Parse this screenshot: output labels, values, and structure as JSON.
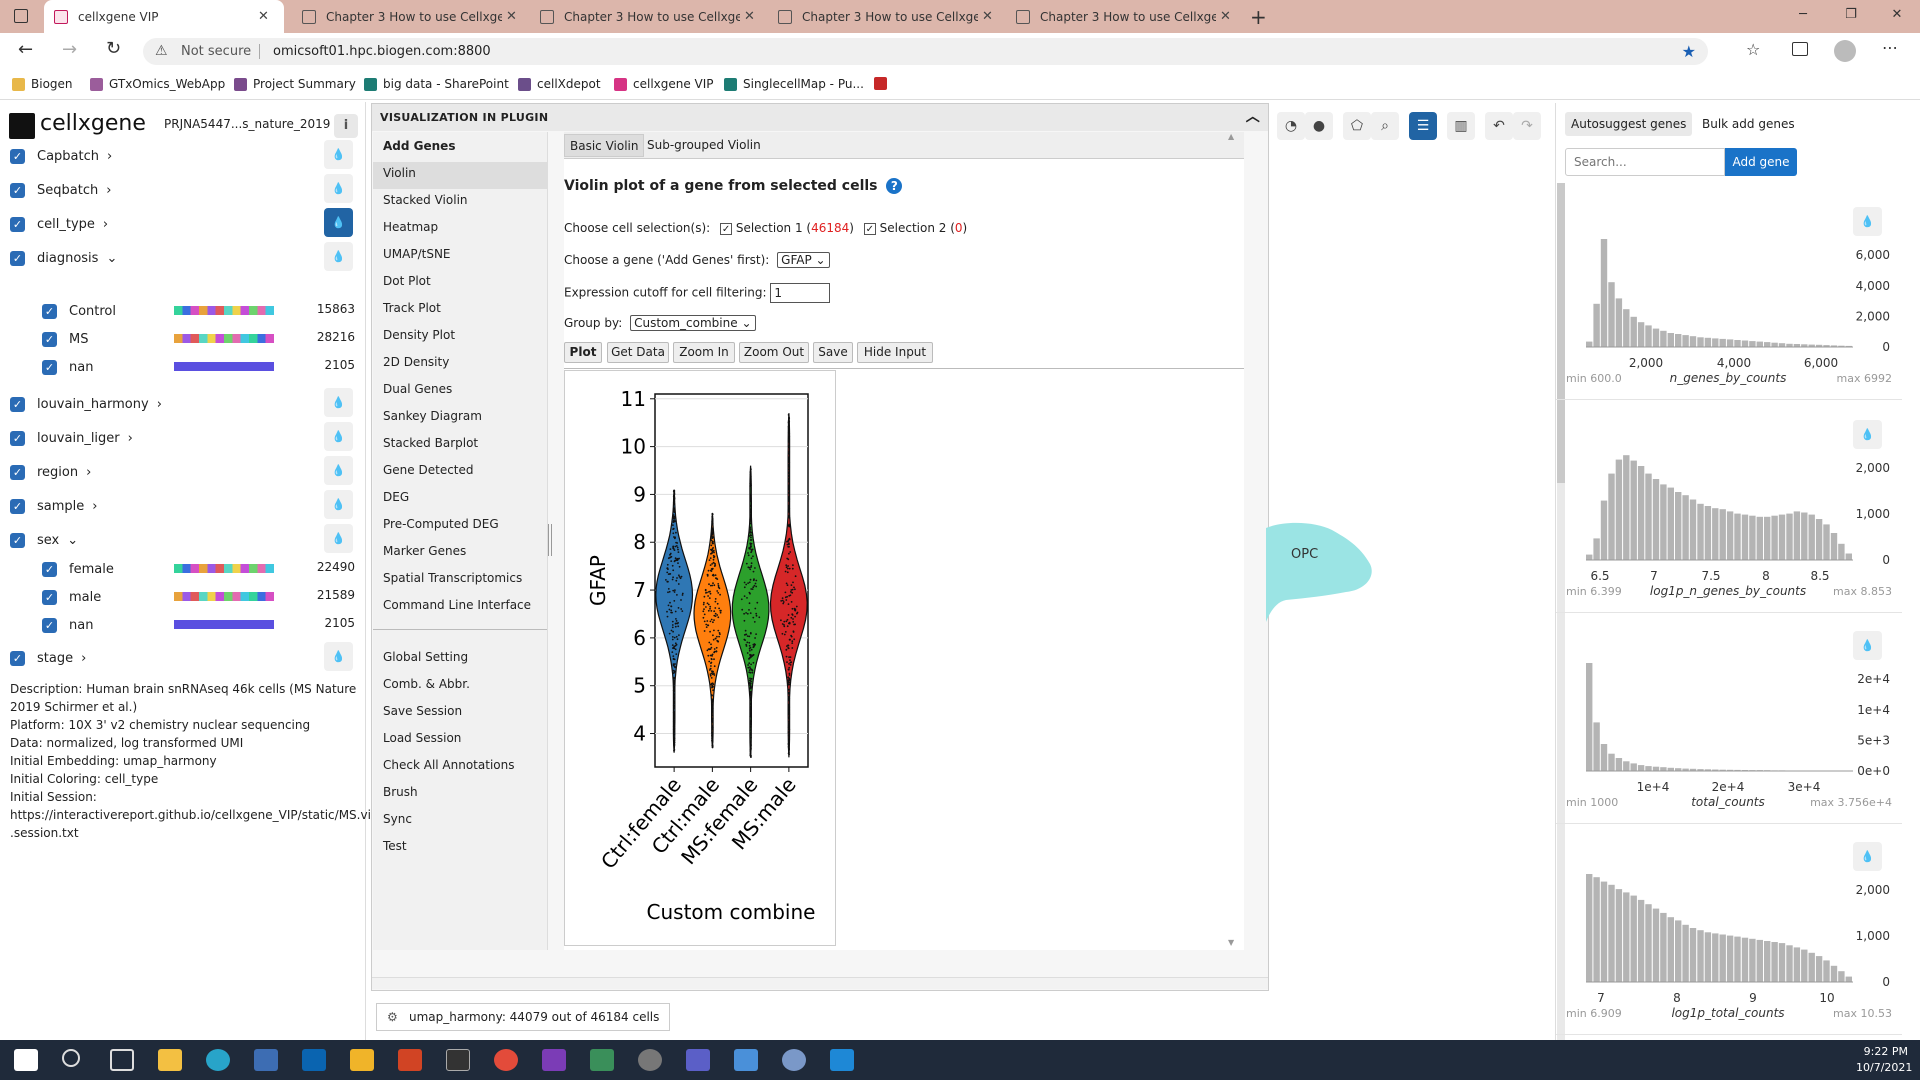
{
  "browser": {
    "tabs": [
      {
        "label": "cellxgene VIP",
        "active": true
      },
      {
        "label": "Chapter 3 How to use Cellxgene",
        "active": false
      },
      {
        "label": "Chapter 3 How to use Cellxgene",
        "active": false
      },
      {
        "label": "Chapter 3 How to use Cellxgene",
        "active": false
      },
      {
        "label": "Chapter 3 How to use Cellxgene",
        "active": false
      }
    ],
    "not_secure": "Not secure",
    "url": "omicsoft01.hpc.biogen.com:8800",
    "bookmarks": [
      "Biogen",
      "GTxOmics_WebApp",
      "Project Summary",
      "big data - SharePoint",
      "cellXdepot",
      "cellxgene VIP",
      "SinglecellMap - Pu..."
    ]
  },
  "left": {
    "logo": "cellxgene",
    "dataset": "PRJNA5447...s_nature_2019",
    "categories": [
      {
        "label": "Capbatch",
        "arrow": "›"
      },
      {
        "label": "Seqbatch",
        "arrow": "›"
      },
      {
        "label": "cell_type",
        "arrow": "›"
      },
      {
        "label": "diagnosis",
        "arrow": "⌄"
      },
      {
        "label": "louvain_harmony",
        "arrow": "›"
      },
      {
        "label": "louvain_liger",
        "arrow": "›"
      },
      {
        "label": "region",
        "arrow": "›"
      },
      {
        "label": "sample",
        "arrow": "›"
      },
      {
        "label": "sex",
        "arrow": "⌄"
      },
      {
        "label": "stage",
        "arrow": "›"
      }
    ],
    "diagnosis_values": [
      {
        "label": "Control",
        "count": "15863"
      },
      {
        "label": "MS",
        "count": "28216"
      },
      {
        "label": "nan",
        "count": "2105"
      }
    ],
    "sex_values": [
      {
        "label": "female",
        "count": "22490"
      },
      {
        "label": "male",
        "count": "21589"
      },
      {
        "label": "nan",
        "count": "2105"
      }
    ],
    "description": [
      "Description: Human brain snRNAseq 46k cells (MS Nature",
      "2019 Schirmer et al.)",
      "Platform: 10X 3' v2 chemistry nuclear sequencing",
      "Data: normalized, log transformed UMI",
      "Initial Embedding: umap_harmony",
      "Initial Coloring: cell_type",
      "Initial Session:",
      "https://interactivereport.github.io/cellxgene_VIP/static/MS.vip",
      ".session.txt"
    ]
  },
  "plugin": {
    "title": "Visualization in Plugin",
    "menu": [
      "Add Genes",
      "Violin",
      "Stacked Violin",
      "Heatmap",
      "UMAP/tSNE",
      "Dot Plot",
      "Track Plot",
      "Density Plot",
      "2D Density",
      "Dual Genes",
      "Sankey Diagram",
      "Stacked Barplot",
      "Gene Detected",
      "DEG",
      "Pre-Computed DEG",
      "Marker Genes",
      "Spatial Transcriptomics",
      "Command Line Interface"
    ],
    "menu2": [
      "Global Setting",
      "Comb. & Abbr.",
      "Save Session",
      "Load Session",
      "Check All Annotations",
      "Brush",
      "Sync",
      "Test"
    ],
    "subtabs": [
      "Basic Violin",
      "Sub-grouped Violin"
    ],
    "heading": "Violin plot of a gene from selected cells",
    "help": "?",
    "choose_sel": "Choose cell selection(s):",
    "sel1": "Selection 1 (",
    "sel1_count": "46184",
    "sel2": "Selection 2 (",
    "sel2_count": "0",
    "paren": ")",
    "choose_gene": "Choose a gene ('Add Genes' first):",
    "gene": "GFAP",
    "cutoff_label": "Expression cutoff for cell filtering:",
    "cutoff": "1",
    "groupby_label": "Group by:",
    "groupby": "Custom_combine",
    "buttons": [
      "Plot",
      "Get Data",
      "Zoom In",
      "Zoom Out",
      "Save",
      "Hide Input"
    ]
  },
  "chart_data": {
    "type": "violin",
    "categories": [
      "Ctrl:female",
      "Ctrl:male",
      "MS:female",
      "MS:male"
    ],
    "colors": [
      "#2f77b4",
      "#ff7f0e",
      "#2ca02c",
      "#d62728"
    ],
    "ranges": [
      [
        3.6,
        9.1
      ],
      [
        3.7,
        8.6
      ],
      [
        3.5,
        9.6
      ],
      [
        3.5,
        10.7
      ]
    ],
    "modes": [
      6.9,
      6.5,
      6.6,
      6.7
    ],
    "ylabel": "GFAP",
    "xlabel": "Custom combine",
    "yticks": [
      4,
      5,
      6,
      7,
      8,
      9,
      10,
      11
    ],
    "ylim": [
      3.3,
      11.1
    ]
  },
  "status": {
    "embedding": "umap_harmony: 44079 out of 46184 cells"
  },
  "embedding_label": "OPC",
  "genes": {
    "autosuggest": "Autosuggest genes",
    "bulk": "Bulk add genes",
    "placeholder": "Search...",
    "add": "Add gene"
  },
  "histograms": [
    {
      "name": "n_genes_by_counts",
      "min": "min 600.0",
      "max": "max 6992",
      "xticks": [
        "2,000",
        "4,000",
        "6,000"
      ],
      "yticks": [
        "6,000",
        "4,000",
        "2,000",
        "0"
      ],
      "values": [
        0.05,
        0.4,
        1.0,
        0.6,
        0.45,
        0.35,
        0.28,
        0.23,
        0.2,
        0.17,
        0.15,
        0.13,
        0.12,
        0.11,
        0.1,
        0.09,
        0.085,
        0.08,
        0.075,
        0.07,
        0.065,
        0.06,
        0.055,
        0.05,
        0.045,
        0.04,
        0.035,
        0.03,
        0.028,
        0.025,
        0.022,
        0.02,
        0.018,
        0.015,
        0.012,
        0.01
      ]
    },
    {
      "name": "log1p_n_genes_by_counts",
      "min": "min 6.399",
      "max": "max 8.853",
      "xticks": [
        "6.5",
        "7",
        "7.5",
        "8",
        "8.5"
      ],
      "yticks": [
        "2,000",
        "1,000",
        "0"
      ],
      "values": [
        0.05,
        0.2,
        0.55,
        0.8,
        0.93,
        0.97,
        0.92,
        0.87,
        0.8,
        0.75,
        0.7,
        0.67,
        0.63,
        0.6,
        0.56,
        0.52,
        0.5,
        0.48,
        0.47,
        0.45,
        0.43,
        0.42,
        0.41,
        0.4,
        0.4,
        0.41,
        0.42,
        0.43,
        0.45,
        0.44,
        0.42,
        0.38,
        0.33,
        0.25,
        0.15,
        0.06
      ]
    },
    {
      "name": "total_counts",
      "min": "min 1000",
      "max": "max 3.756e+4",
      "xticks": [
        "1e+4",
        "2e+4",
        "3e+4"
      ],
      "yticks": [
        "2e+4",
        "1e+4",
        "5e+3",
        "0e+0"
      ],
      "values": [
        1.0,
        0.45,
        0.25,
        0.16,
        0.12,
        0.09,
        0.07,
        0.055,
        0.045,
        0.04,
        0.035,
        0.03,
        0.026,
        0.022,
        0.02,
        0.018,
        0.016,
        0.014,
        0.012,
        0.011,
        0.01,
        0.009,
        0.008,
        0.008,
        0.007,
        0.006,
        0.006,
        0.005,
        0.005,
        0.004,
        0.004,
        0.003,
        0.003,
        0.003,
        0.002,
        0.002
      ]
    },
    {
      "name": "log1p_total_counts",
      "min": "min 6.909",
      "max": "max 10.53",
      "xticks": [
        "7",
        "8",
        "9",
        "10"
      ],
      "yticks": [
        "2,000",
        "1,000",
        "0"
      ],
      "values": [
        1.0,
        0.97,
        0.93,
        0.9,
        0.86,
        0.83,
        0.8,
        0.76,
        0.72,
        0.68,
        0.64,
        0.6,
        0.57,
        0.53,
        0.5,
        0.48,
        0.46,
        0.45,
        0.44,
        0.43,
        0.42,
        0.41,
        0.4,
        0.39,
        0.38,
        0.37,
        0.36,
        0.34,
        0.32,
        0.3,
        0.27,
        0.24,
        0.2,
        0.15,
        0.1,
        0.05
      ]
    }
  ],
  "taskbar": {
    "time": "9:22 PM",
    "date": "10/7/2021"
  }
}
